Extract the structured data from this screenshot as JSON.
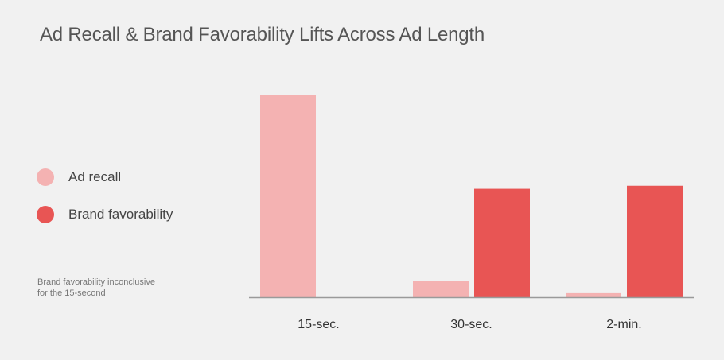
{
  "chart_data": {
    "type": "bar",
    "title": "Ad Recall & Brand Favorability Lifts Across Ad Length",
    "categories": [
      "15-sec.",
      "30-sec.",
      "2-min."
    ],
    "series": [
      {
        "name": "Ad recall",
        "color": "#f4b2b2",
        "values": [
          100,
          8,
          2
        ]
      },
      {
        "name": "Brand favorability",
        "color": "#e85554",
        "values": [
          null,
          53.5,
          55
        ]
      }
    ],
    "ylim": [
      0,
      100
    ],
    "grid": false,
    "legend_position": "left",
    "note_lines": [
      "Brand favorability inconclusive",
      "for the 15-second"
    ]
  }
}
